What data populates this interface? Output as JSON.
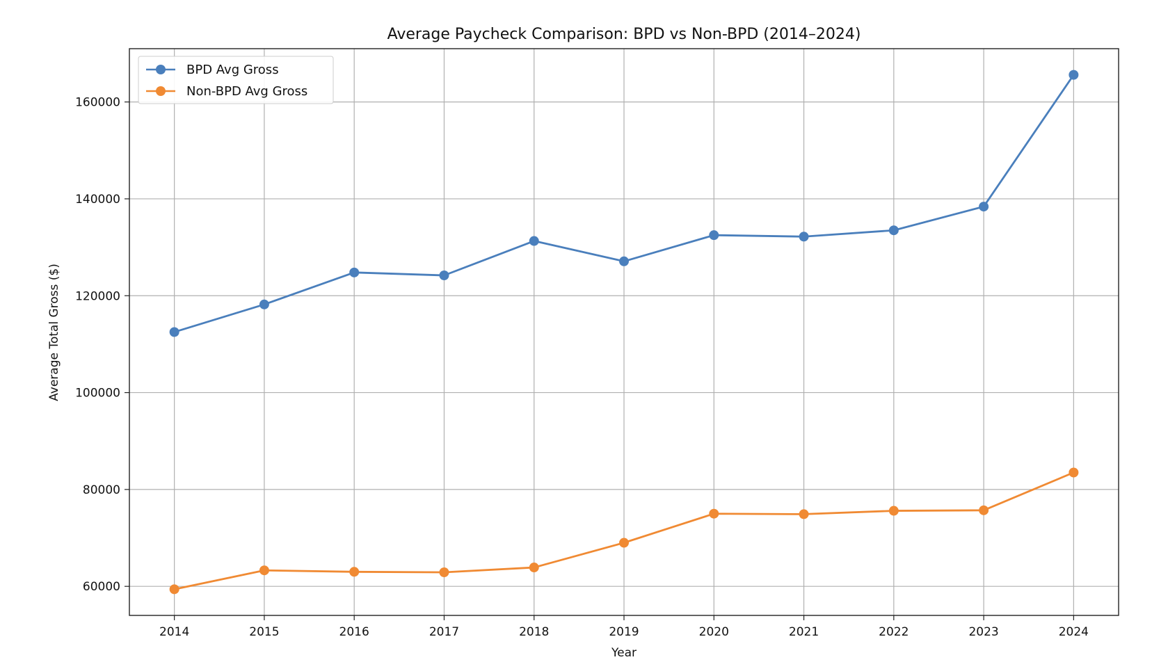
{
  "chart_data": {
    "type": "line",
    "title": "Average Paycheck Comparison: BPD vs Non-BPD (2014–2024)",
    "xlabel": "Year",
    "ylabel": "Average Total Gross ($)",
    "x": [
      2014,
      2015,
      2016,
      2017,
      2018,
      2019,
      2020,
      2021,
      2022,
      2023,
      2024
    ],
    "x_ticks": [
      "2014",
      "2015",
      "2016",
      "2017",
      "2018",
      "2019",
      "2020",
      "2021",
      "2022",
      "2023",
      "2024"
    ],
    "y_ticks": [
      "60000",
      "80000",
      "100000",
      "120000",
      "140000",
      "160000"
    ],
    "xlim": [
      2013.5,
      2024.5
    ],
    "ylim": [
      54000,
      171000
    ],
    "grid": true,
    "legend_position": "top-left",
    "series": [
      {
        "name": "BPD Avg Gross",
        "color": "#4a7fbc",
        "marker": "circle",
        "values": [
          112500,
          118200,
          124800,
          124200,
          131300,
          127100,
          132500,
          132200,
          133500,
          138400,
          165600
        ]
      },
      {
        "name": "Non-BPD Avg Gross",
        "color": "#f08a33",
        "marker": "circle",
        "values": [
          59400,
          63300,
          63000,
          62900,
          63900,
          69000,
          75000,
          74900,
          75600,
          75700,
          83500
        ]
      }
    ]
  }
}
